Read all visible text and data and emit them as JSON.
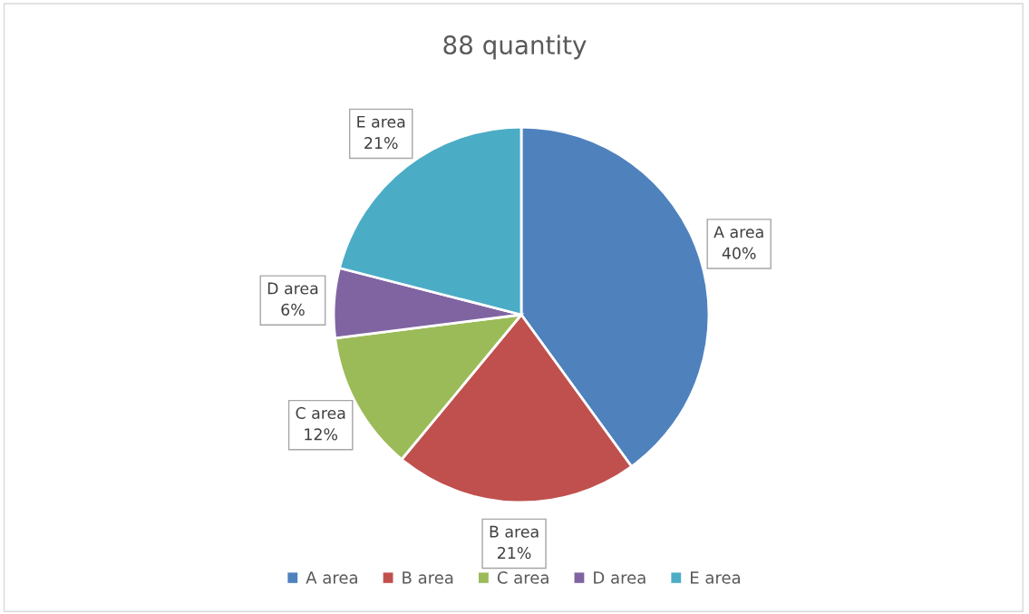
{
  "chart_data": {
    "type": "pie",
    "title": "88 quantity",
    "categories": [
      "A area",
      "B area",
      "C area",
      "D area",
      "E area"
    ],
    "values": [
      40,
      21,
      12,
      6,
      21
    ],
    "value_labels": [
      "40%",
      "21%",
      "12%",
      "6%",
      "21%"
    ],
    "colors": [
      "#4f81bd",
      "#c0504d",
      "#9bbb59",
      "#8064a2",
      "#4bacc6"
    ],
    "legend": "bottom"
  }
}
